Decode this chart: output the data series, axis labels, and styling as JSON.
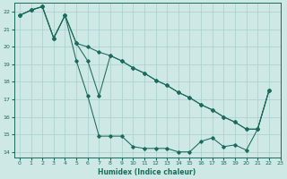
{
  "xlabel": "Humidex (Indice chaleur)",
  "background_color": "#cde8e5",
  "grid_color": "#aacfcc",
  "line_color": "#1a6b5a",
  "xlim": [
    -0.5,
    23
  ],
  "ylim": [
    13.7,
    22.5
  ],
  "xticks": [
    0,
    1,
    2,
    3,
    4,
    5,
    6,
    7,
    8,
    9,
    10,
    11,
    12,
    13,
    14,
    15,
    16,
    17,
    18,
    19,
    20,
    21,
    22,
    23
  ],
  "yticks": [
    14,
    15,
    16,
    17,
    18,
    19,
    20,
    21,
    22
  ],
  "series1_x": [
    0,
    1,
    2,
    3,
    4,
    5,
    6,
    7,
    8,
    9,
    10,
    11,
    12,
    13,
    14,
    15,
    16,
    17,
    18,
    19,
    20,
    21,
    22
  ],
  "series1_y": [
    21.8,
    22.1,
    22.3,
    20.5,
    21.8,
    19.2,
    17.2,
    14.9,
    14.9,
    14.9,
    14.3,
    14.2,
    14.2,
    14.2,
    14.0,
    14.0,
    14.6,
    14.8,
    14.3,
    14.4,
    14.1,
    15.3,
    17.5
  ],
  "series2_x": [
    0,
    1,
    2,
    3,
    4,
    5,
    6,
    7,
    8,
    9,
    10,
    11,
    12,
    13,
    14,
    15,
    16,
    17,
    18,
    19,
    20,
    21,
    22
  ],
  "series2_y": [
    21.8,
    22.1,
    22.3,
    20.5,
    21.8,
    20.2,
    19.2,
    17.2,
    19.5,
    19.2,
    18.8,
    18.5,
    18.1,
    17.8,
    17.4,
    17.1,
    16.7,
    16.4,
    16.0,
    15.7,
    15.3,
    15.3,
    17.5
  ],
  "series3_x": [
    0,
    1,
    2,
    3,
    4,
    5,
    6,
    7,
    8,
    9,
    10,
    11,
    12,
    13,
    14,
    15,
    16,
    17,
    18,
    19,
    20,
    21,
    22
  ],
  "series3_y": [
    21.8,
    22.1,
    22.3,
    20.5,
    21.8,
    20.2,
    20.0,
    19.7,
    19.5,
    19.2,
    18.8,
    18.5,
    18.1,
    17.8,
    17.4,
    17.1,
    16.7,
    16.4,
    16.0,
    15.7,
    15.3,
    15.3,
    17.5
  ]
}
